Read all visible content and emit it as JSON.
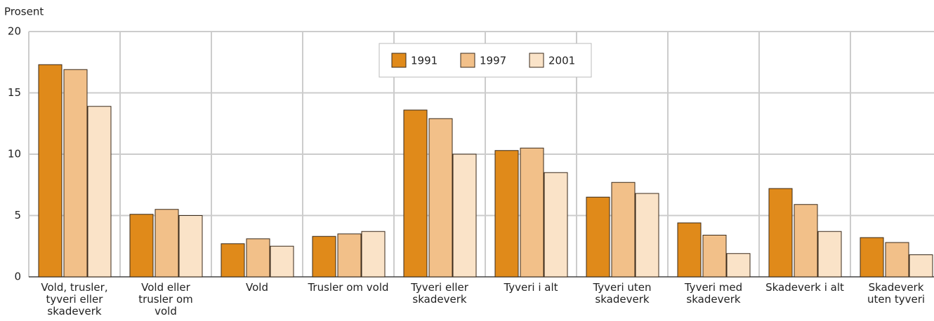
{
  "chart_data": {
    "type": "bar",
    "y_label": "Prosent",
    "categories": [
      "Vold, trusler,\ntyveri eller\nskadeverk",
      "Vold eller\ntrusler om\nvold",
      "Vold",
      "Trusler om vold",
      "Tyveri eller\nskadeverk",
      "Tyveri i alt",
      "Tyveri uten\nskadeverk",
      "Tyveri med\nskadeverk",
      "Skadeverk i alt",
      "Skadeverk\nuten tyveri"
    ],
    "series": [
      {
        "name": "1991",
        "color": "#e08a1a",
        "values": [
          17.3,
          5.1,
          2.7,
          3.3,
          13.6,
          10.3,
          6.5,
          4.4,
          7.2,
          3.2
        ]
      },
      {
        "name": "1997",
        "color": "#f2c089",
        "values": [
          16.9,
          5.5,
          3.1,
          3.5,
          12.9,
          10.5,
          7.7,
          3.4,
          5.9,
          2.8
        ]
      },
      {
        "name": "2001",
        "color": "#fae3c8",
        "values": [
          13.9,
          5.0,
          2.5,
          3.7,
          10.0,
          8.5,
          6.8,
          1.9,
          3.7,
          1.8
        ]
      }
    ],
    "ylim": [
      0,
      20
    ],
    "yticks": [
      0,
      5,
      10,
      15,
      20
    ],
    "grid": true,
    "legend": "top"
  }
}
